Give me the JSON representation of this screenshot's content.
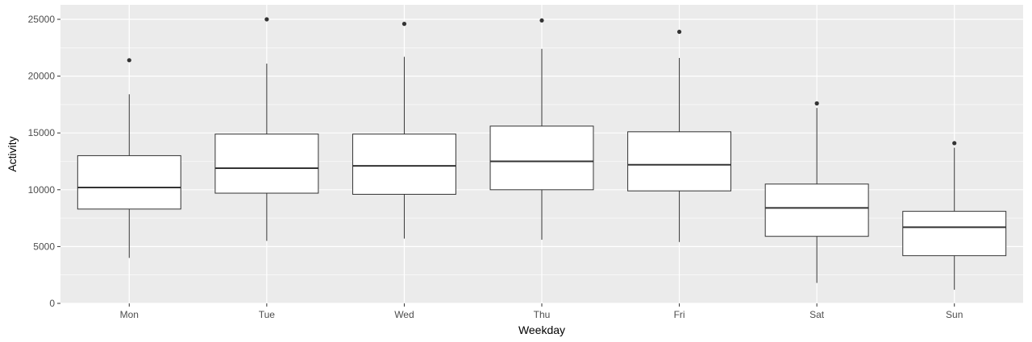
{
  "chart_data": {
    "type": "boxplot",
    "title": "",
    "xlabel": "Weekday",
    "ylabel": "Activity",
    "ylim": [
      0,
      25000
    ],
    "yticks": [
      0,
      5000,
      10000,
      15000,
      20000,
      25000
    ],
    "grid": true,
    "legend": "none",
    "categories": [
      "Mon",
      "Tue",
      "Wed",
      "Thu",
      "Fri",
      "Sat",
      "Sun"
    ],
    "boxes": [
      {
        "category": "Mon",
        "whisker_low": 4000,
        "q1": 8300,
        "median": 10200,
        "q3": 13000,
        "whisker_high": 18400,
        "outliers": [
          21400
        ]
      },
      {
        "category": "Tue",
        "whisker_low": 5500,
        "q1": 9700,
        "median": 11900,
        "q3": 14900,
        "whisker_high": 21100,
        "outliers": [
          25000
        ]
      },
      {
        "category": "Wed",
        "whisker_low": 5700,
        "q1": 9600,
        "median": 12100,
        "q3": 14900,
        "whisker_high": 21700,
        "outliers": [
          24600
        ]
      },
      {
        "category": "Thu",
        "whisker_low": 5600,
        "q1": 10000,
        "median": 12500,
        "q3": 15600,
        "whisker_high": 22400,
        "outliers": [
          24900
        ]
      },
      {
        "category": "Fri",
        "whisker_low": 5400,
        "q1": 9900,
        "median": 12200,
        "q3": 15100,
        "whisker_high": 21600,
        "outliers": [
          23900
        ]
      },
      {
        "category": "Sat",
        "whisker_low": 1800,
        "q1": 5900,
        "median": 8400,
        "q3": 10500,
        "whisker_high": 17200,
        "outliers": [
          17600
        ]
      },
      {
        "category": "Sun",
        "whisker_low": 1200,
        "q1": 4200,
        "median": 6700,
        "q3": 8100,
        "whisker_high": 13700,
        "outliers": [
          14100
        ]
      }
    ],
    "colors": {
      "panel": "#ebebeb",
      "grid": "#ffffff",
      "box_fill": "#ffffff",
      "box_line": "#333333",
      "outlier": "#333333",
      "tick_text": "#4d4d4d",
      "axis_title": "#000000"
    }
  }
}
